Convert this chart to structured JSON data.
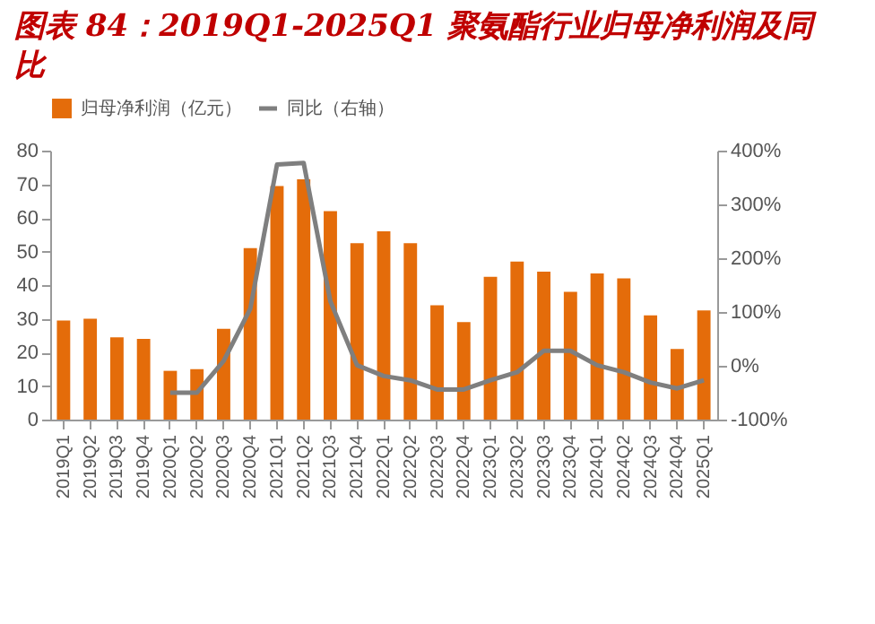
{
  "chart_data": {
    "type": "bar",
    "title": "图表 84：2019Q1-2025Q1 聚氨酯行业归母净利润及同比",
    "categories": [
      "2019Q1",
      "2019Q2",
      "2019Q3",
      "2019Q4",
      "2020Q1",
      "2020Q2",
      "2020Q3",
      "2020Q4",
      "2021Q1",
      "2021Q2",
      "2021Q3",
      "2021Q4",
      "2022Q1",
      "2022Q2",
      "2022Q3",
      "2022Q4",
      "2023Q1",
      "2023Q2",
      "2023Q3",
      "2023Q4",
      "2024Q1",
      "2024Q2",
      "2024Q3",
      "2024Q4",
      "2025Q1"
    ],
    "series": [
      {
        "name": "归母净利润（亿元）",
        "color": "#e46c0a",
        "values": [
          29.5,
          30,
          24.5,
          24,
          14.5,
          15,
          27,
          51,
          69.5,
          71.5,
          62,
          52.5,
          56,
          52.5,
          34,
          29,
          42.5,
          47,
          44,
          38,
          43.5,
          42,
          31,
          21,
          32.5
        ]
      },
      {
        "name": "同比（右轴）",
        "type": "line",
        "axis": "y2",
        "color": "#7f7f7f",
        "values": [
          null,
          null,
          null,
          null,
          -50,
          -50,
          9,
          106,
          374,
          377,
          120,
          1,
          -19,
          -27,
          -44,
          -44,
          -27,
          -12,
          28,
          28,
          1,
          -12,
          -31,
          -42,
          -27
        ]
      }
    ],
    "ylim": [
      0,
      80
    ],
    "yticks": [
      0,
      10,
      20,
      30,
      40,
      50,
      60,
      70,
      80
    ],
    "y2lim": [
      -100,
      400
    ],
    "y2ticks": [
      {
        "value": -100,
        "label": "-100%"
      },
      {
        "value": 0,
        "label": "0%"
      },
      {
        "value": 100,
        "label": "100%"
      },
      {
        "value": 200,
        "label": "200%"
      },
      {
        "value": 300,
        "label": "300%"
      },
      {
        "value": 400,
        "label": "400%"
      }
    ],
    "legend": "top",
    "grid": false,
    "marker": "none",
    "line_style": "solid"
  }
}
